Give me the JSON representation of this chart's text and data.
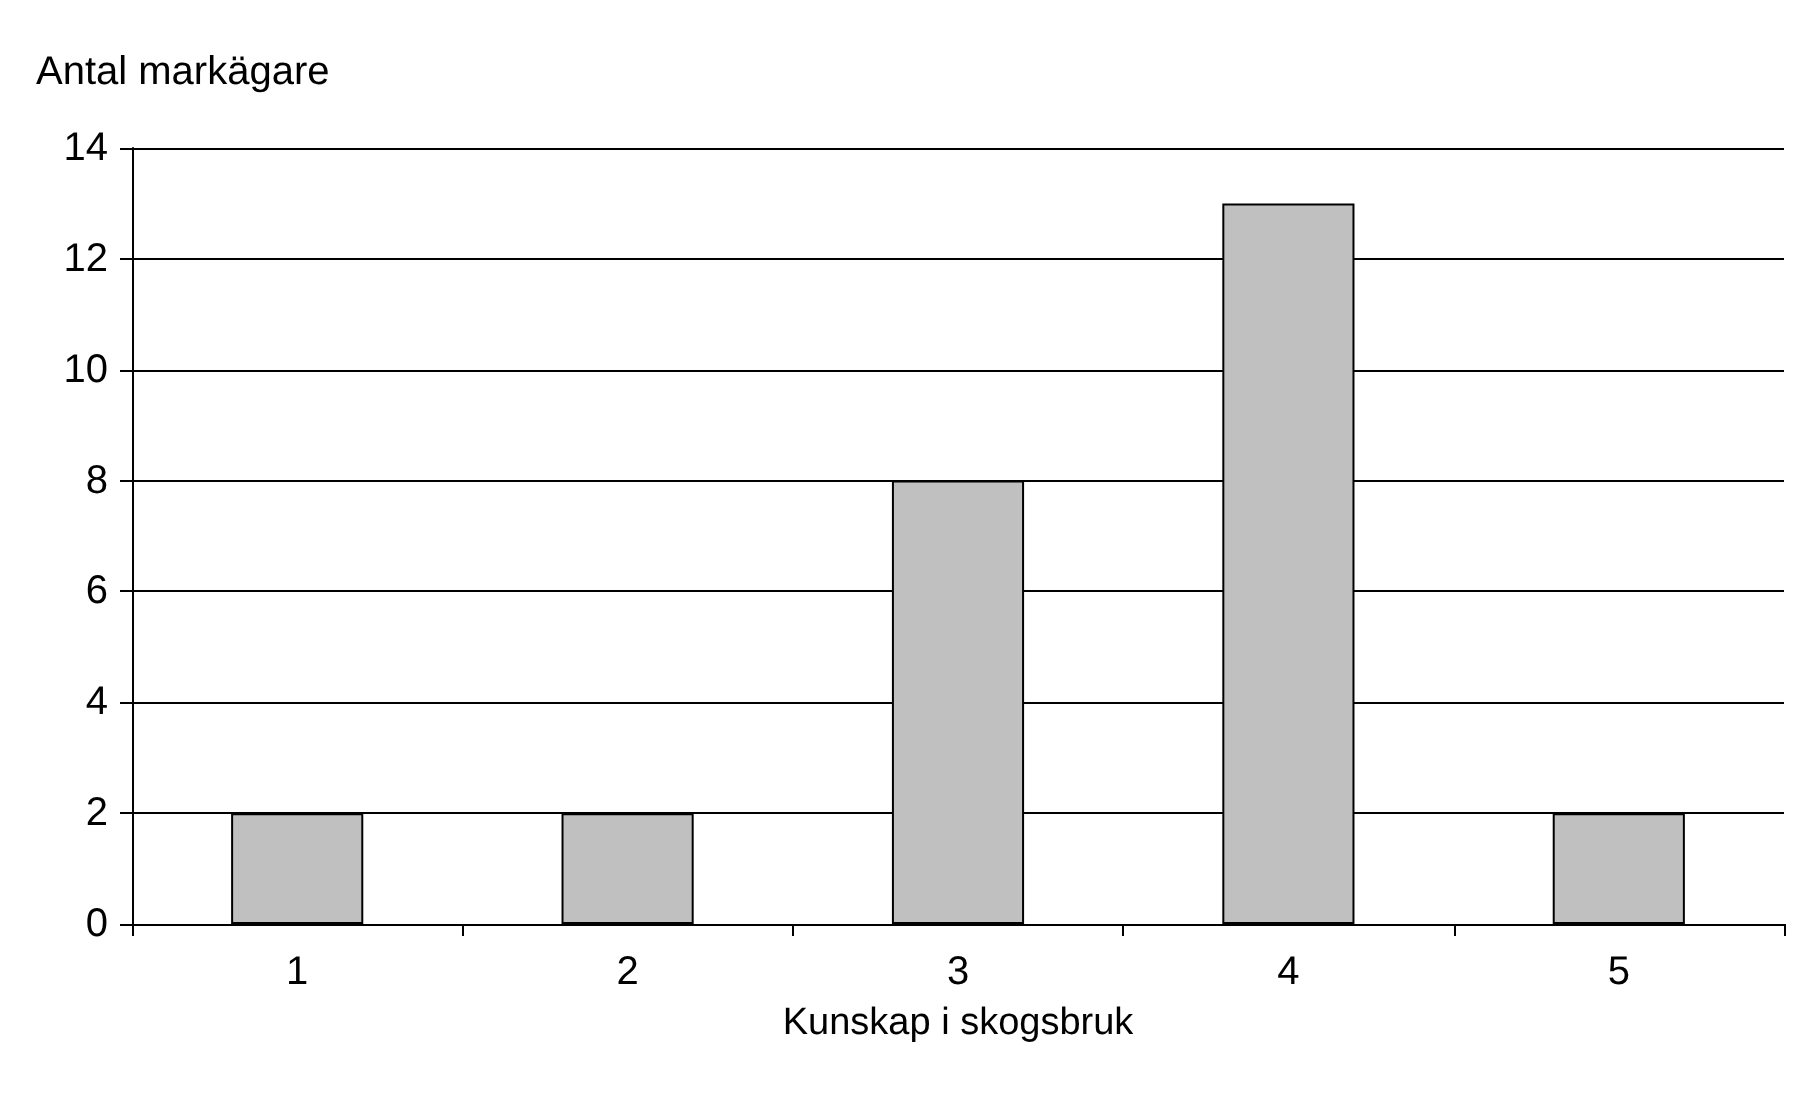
{
  "chart_data": {
    "type": "bar",
    "ylabel": "Antal markägare",
    "xlabel": "Kunskap i skogsbruk",
    "categories": [
      "1",
      "2",
      "3",
      "4",
      "5"
    ],
    "values": [
      2,
      2,
      8,
      13,
      2
    ],
    "color": "#c0c0c0",
    "ylim": [
      0,
      14
    ],
    "yticks": [
      0,
      2,
      4,
      6,
      8,
      10,
      12,
      14
    ],
    "grid": "y"
  }
}
